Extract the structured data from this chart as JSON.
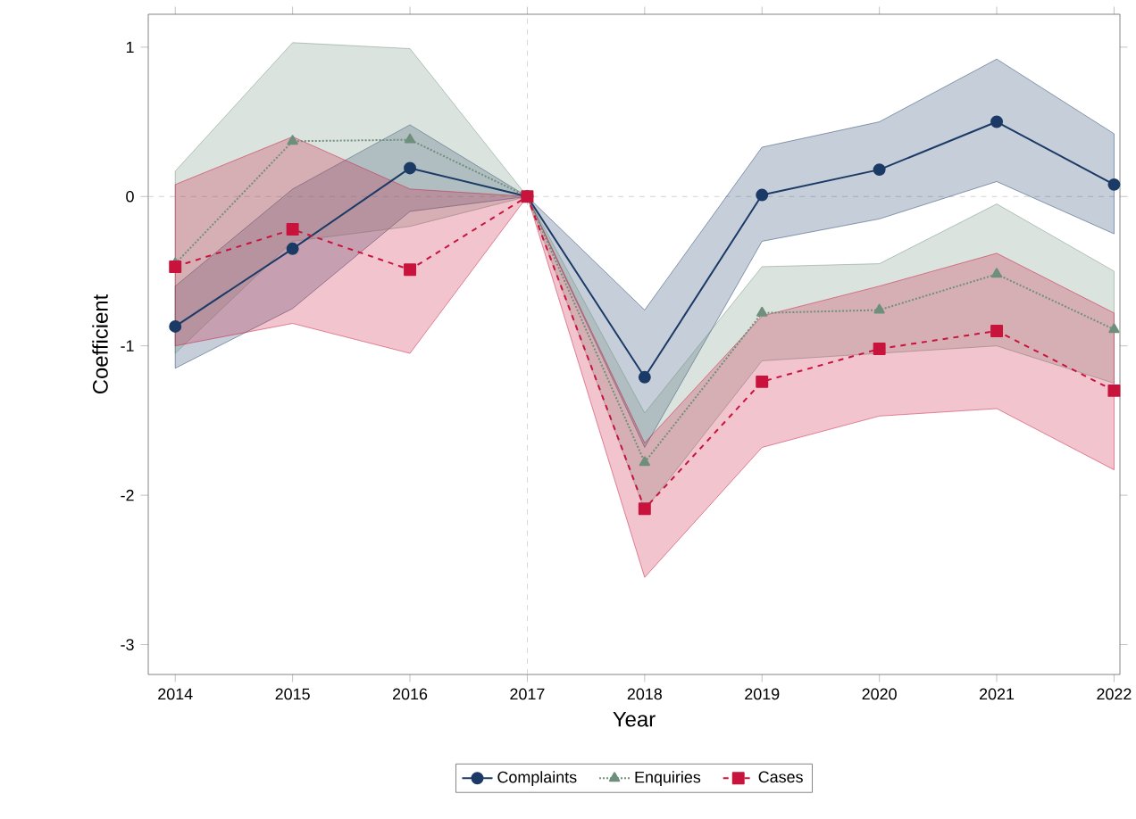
{
  "chart_data": {
    "type": "line",
    "xlabel": "Year",
    "ylabel": "Coefficient",
    "x": [
      2014,
      2015,
      2016,
      2017,
      2018,
      2019,
      2020,
      2021,
      2022
    ],
    "series": [
      {
        "name": "Complaints",
        "color": "#1b3a66",
        "marker": "circle",
        "line_style": "solid",
        "values": [
          -0.87,
          -0.35,
          0.19,
          0,
          -1.21,
          0.01,
          0.18,
          0.5,
          0.08
        ],
        "lower": [
          -1.15,
          -0.75,
          -0.1,
          0,
          -1.68,
          -0.3,
          -0.15,
          0.1,
          -0.25
        ],
        "upper": [
          -0.6,
          0.05,
          0.48,
          0,
          -0.76,
          0.33,
          0.5,
          0.92,
          0.42
        ]
      },
      {
        "name": "Enquiries",
        "color": "#6e8f7c",
        "marker": "triangle",
        "line_style": "dotted",
        "values": [
          -0.45,
          0.37,
          0.38,
          0,
          -1.78,
          -0.78,
          -0.76,
          -0.52,
          -0.89
        ],
        "lower": [
          -1.05,
          -0.3,
          -0.2,
          0,
          -2.1,
          -1.1,
          -1.05,
          -1.0,
          -1.25
        ],
        "upper": [
          0.17,
          1.03,
          0.99,
          0,
          -1.45,
          -0.47,
          -0.45,
          -0.05,
          -0.5
        ]
      },
      {
        "name": "Cases",
        "color": "#c8143c",
        "marker": "square",
        "line_style": "dashed",
        "values": [
          -0.47,
          -0.22,
          -0.49,
          0,
          -2.09,
          -1.24,
          -1.02,
          -0.9,
          -1.3
        ],
        "lower": [
          -1.0,
          -0.85,
          -1.05,
          0,
          -2.55,
          -1.68,
          -1.47,
          -1.42,
          -1.83
        ],
        "upper": [
          0.08,
          0.4,
          0.05,
          0,
          -1.65,
          -0.8,
          -0.6,
          -0.38,
          -0.78
        ]
      }
    ],
    "xlim": [
      2013.77,
      2022.05
    ],
    "ylim": [
      -3.2,
      1.22
    ],
    "xticks": [
      2014,
      2015,
      2016,
      2017,
      2018,
      2019,
      2020,
      2021,
      2022
    ],
    "yticks": [
      -3,
      -2,
      -1,
      0,
      1
    ],
    "ref_lines": [
      {
        "axis": "x",
        "value": 2017,
        "color": "#c8c8c8",
        "line_style": "dashed"
      },
      {
        "axis": "y",
        "value": 0,
        "color": "#c8c8c8",
        "line_style": "dashed"
      }
    ],
    "grid": false,
    "legend": "bottom"
  }
}
